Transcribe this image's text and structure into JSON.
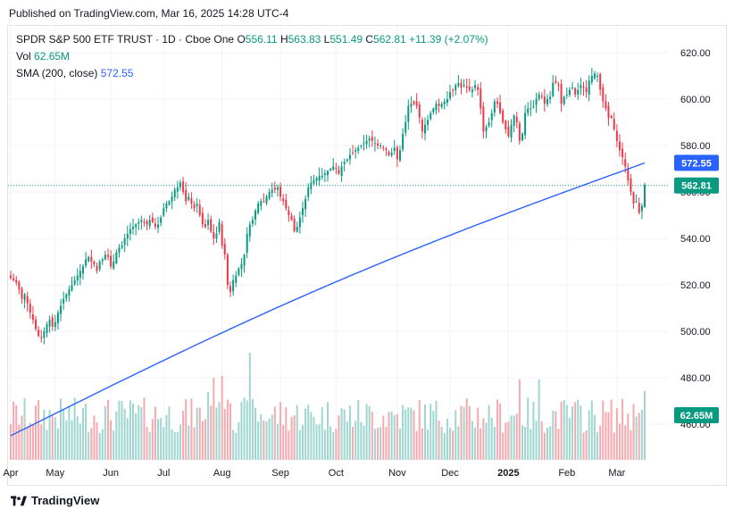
{
  "header": {
    "published": "Published on TradingView.com, Mar 16, 2025 14:28 UTC-4"
  },
  "legend": {
    "symbol": "SPDR S&P 500 ETF TRUST · 1D · Cboe One",
    "o_label": "O",
    "o": "556.11",
    "h_label": "H",
    "h": "563.83",
    "l_label": "L",
    "l": "551.49",
    "c_label": "C",
    "c": "562.81",
    "change": "+11.39 (+2.07%)",
    "vol_label": "Vol",
    "vol": "62.65M",
    "sma_label": "SMA (200, close)",
    "sma": "572.55"
  },
  "footer": {
    "brand": "TradingView"
  },
  "colors": {
    "up": "#089981",
    "down": "#f23645",
    "up_vol": "#9fd6cf",
    "down_vol": "#f6a9ae",
    "sma": "#2962ff",
    "last": "#089981"
  },
  "chart_data": {
    "type": "candlestick",
    "price_axis": {
      "ticks": [
        460,
        480,
        500,
        520,
        540,
        560,
        580,
        600,
        620
      ],
      "range": [
        443,
        640
      ]
    },
    "time_axis": {
      "labels": [
        "Apr",
        "May",
        "Jun",
        "Jul",
        "Aug",
        "Sep",
        "Oct",
        "Nov",
        "Dec",
        "2025",
        "Feb",
        "Mar"
      ]
    },
    "last_price_label": "562.81",
    "sma_label": "572.55",
    "volume_label": "62.65M",
    "close_series": [
      {
        "m": "Apr",
        "v": [
          523,
          522,
          521,
          518,
          514,
          516,
          512,
          508,
          505,
          501,
          498,
          497,
          500,
          503,
          505,
          502
        ]
      },
      {
        "m": "May",
        "v": [
          504,
          508,
          511,
          514,
          516,
          518,
          520,
          522,
          524,
          526,
          528,
          531,
          532,
          530,
          529,
          526,
          530,
          531,
          533,
          532
        ]
      },
      {
        "m": "Jun",
        "v": [
          528,
          530,
          534,
          536,
          537,
          540,
          542,
          544,
          545,
          546,
          547,
          548,
          547,
          546,
          548,
          547,
          545,
          546,
          549
        ]
      },
      {
        "m": "Jul",
        "v": [
          553,
          555,
          556,
          558,
          561,
          562,
          564,
          560,
          556,
          558,
          555,
          553,
          555,
          550,
          546,
          545,
          548,
          543,
          540,
          542,
          547
        ]
      },
      {
        "m": "Aug",
        "v": [
          537,
          533,
          520,
          517,
          522,
          524,
          527,
          529,
          533,
          542,
          546,
          548,
          552,
          555,
          556,
          556,
          558,
          560,
          561,
          561,
          562
        ]
      },
      {
        "m": "Sep",
        "v": [
          558,
          556,
          553,
          550,
          548,
          543,
          545,
          549,
          553,
          557,
          562,
          564,
          565,
          566,
          567,
          567,
          568,
          569,
          570,
          571
        ]
      },
      {
        "m": "Oct",
        "v": [
          570,
          568,
          571,
          573,
          574,
          576,
          577,
          578,
          579,
          580,
          581,
          582,
          583,
          582,
          581,
          580,
          580,
          579,
          578,
          576,
          577,
          579
        ]
      },
      {
        "m": "Nov",
        "v": [
          574,
          578,
          585,
          590,
          597,
          598,
          598,
          597,
          592,
          586,
          589,
          591,
          594,
          596,
          598,
          597,
          598,
          599,
          600
        ]
      },
      {
        "m": "Dec",
        "v": [
          603,
          604,
          606,
          607,
          605,
          606,
          605,
          604,
          604,
          606,
          604,
          596,
          586,
          588,
          590,
          594,
          599,
          598,
          594,
          590,
          587
        ]
      },
      {
        "m": "2025",
        "v": [
          584,
          589,
          593,
          590,
          582,
          585,
          594,
          596,
          596,
          597,
          600,
          602,
          601,
          598,
          600,
          601,
          607,
          607,
          606,
          598,
          601
        ]
      },
      {
        "m": "Feb",
        "v": [
          602,
          604,
          605,
          602,
          604,
          606,
          605,
          603,
          608,
          610,
          611,
          610,
          604,
          599,
          596,
          592,
          592,
          587
        ]
      },
      {
        "m": "Mar",
        "v": [
          582,
          578,
          575,
          571,
          565,
          560,
          555,
          556,
          551,
          554,
          563
        ]
      }
    ]
  }
}
